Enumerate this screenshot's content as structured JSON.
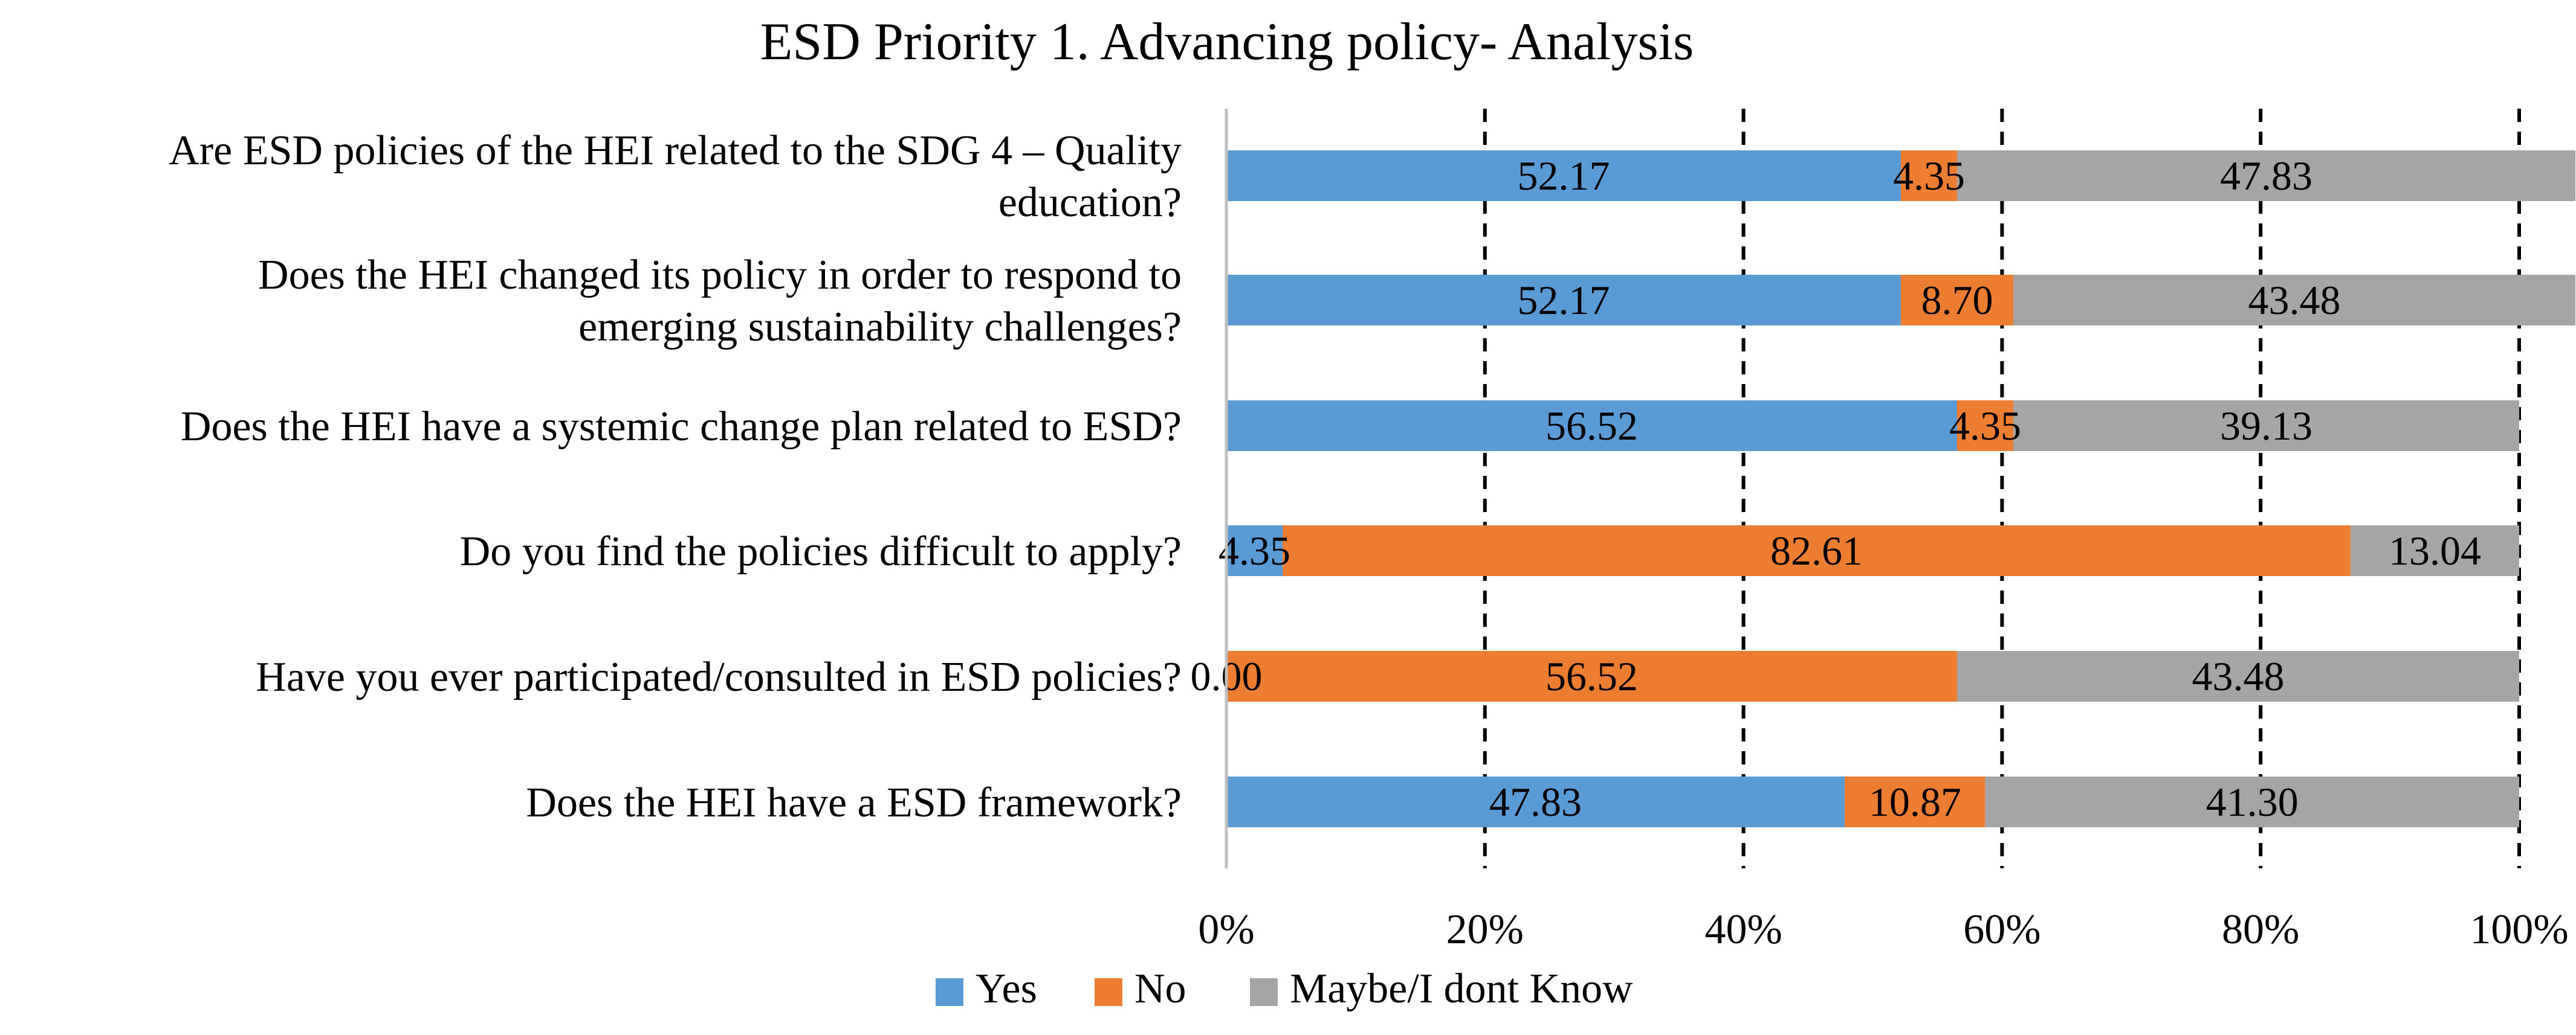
{
  "chart_data": {
    "type": "bar",
    "orientation": "horizontal",
    "stacked": true,
    "percent_stacked": true,
    "title": "ESD Priority 1. Advancing policy- Analysis",
    "xlabel": "",
    "ylabel": "",
    "xlim": [
      0,
      100
    ],
    "x_ticks": [
      "0%",
      "20%",
      "40%",
      "60%",
      "80%",
      "100%"
    ],
    "grid": "vertical dashed",
    "legend_position": "bottom",
    "categories": [
      [
        "Are ESD policies of the HEI related to the SDG 4 – Quality",
        "education?"
      ],
      [
        "Does the HEI changed its policy in order to respond to",
        "emerging sustainability challenges?"
      ],
      [
        "Does the HEI have a systemic change plan related to ESD?"
      ],
      [
        "Do you find the policies difficult to apply?"
      ],
      [
        "Have you ever participated/consulted in ESD policies?"
      ],
      [
        "Does the HEI have a ESD framework?"
      ]
    ],
    "series": [
      {
        "name": "Yes",
        "color": "#5B9BD5",
        "values": [
          52.17,
          52.17,
          56.52,
          4.35,
          0.0,
          47.83
        ],
        "labels": [
          "52.17",
          "52.17",
          "56.52",
          "4.35",
          "0.00",
          "47.83"
        ]
      },
      {
        "name": "No",
        "color": "#ED7D31",
        "values": [
          4.35,
          8.7,
          4.35,
          82.61,
          56.52,
          10.87
        ],
        "labels": [
          "4.35",
          "8.70",
          "4.35",
          "82.61",
          "56.52",
          "10.87"
        ]
      },
      {
        "name": "Maybe/I dont Know",
        "color": "#A5A5A5",
        "values": [
          47.83,
          43.48,
          39.13,
          13.04,
          43.48,
          41.3
        ],
        "labels": [
          "47.83",
          "43.48",
          "39.13",
          "13.04",
          "43.48",
          "41.30"
        ]
      }
    ]
  }
}
